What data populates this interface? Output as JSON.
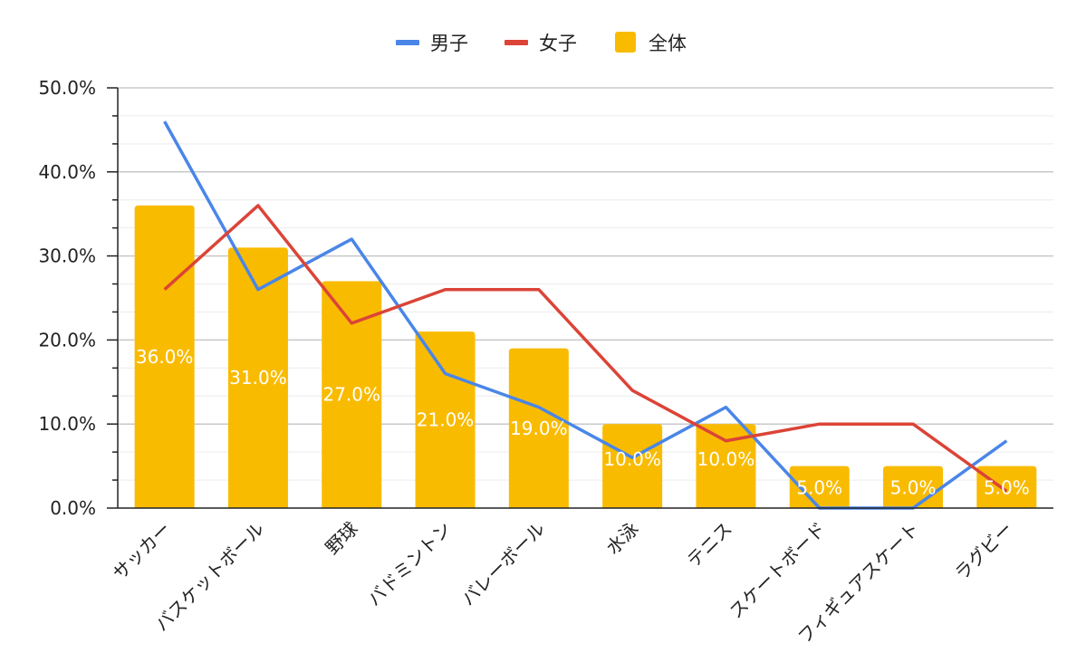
{
  "chart_data": {
    "type": "bar",
    "categories": [
      "サッカー",
      "バスケットボール",
      "野球",
      "バドミントン",
      "バレーボール",
      "水泳",
      "テニス",
      "スケートボード",
      "フィギュアスケート",
      "ラグビー"
    ],
    "series": [
      {
        "name": "男子",
        "type": "line",
        "color": "#4a86e8",
        "values": [
          46.0,
          26.0,
          32.0,
          16.0,
          12.0,
          6.0,
          12.0,
          0.0,
          0.0,
          8.0
        ]
      },
      {
        "name": "女子",
        "type": "line",
        "color": "#db4437",
        "values": [
          26.0,
          36.0,
          22.0,
          26.0,
          26.0,
          14.0,
          8.0,
          10.0,
          10.0,
          2.0
        ]
      },
      {
        "name": "全体",
        "type": "bar",
        "color": "#f9bb00",
        "values": [
          36.0,
          31.0,
          27.0,
          21.0,
          19.0,
          10.0,
          10.0,
          5.0,
          5.0,
          5.0
        ]
      }
    ],
    "data_labels": [
      "36.0%",
      "31.0%",
      "27.0%",
      "21.0%",
      "19.0%",
      "10.0%",
      "10.0%",
      "5.0%",
      "5.0%",
      "5.0%"
    ],
    "y_ticks": [
      "0.0%",
      "10.0%",
      "20.0%",
      "30.0%",
      "40.0%",
      "50.0%"
    ],
    "ylim": [
      0,
      50
    ],
    "grid": true,
    "legend_position": "top"
  }
}
